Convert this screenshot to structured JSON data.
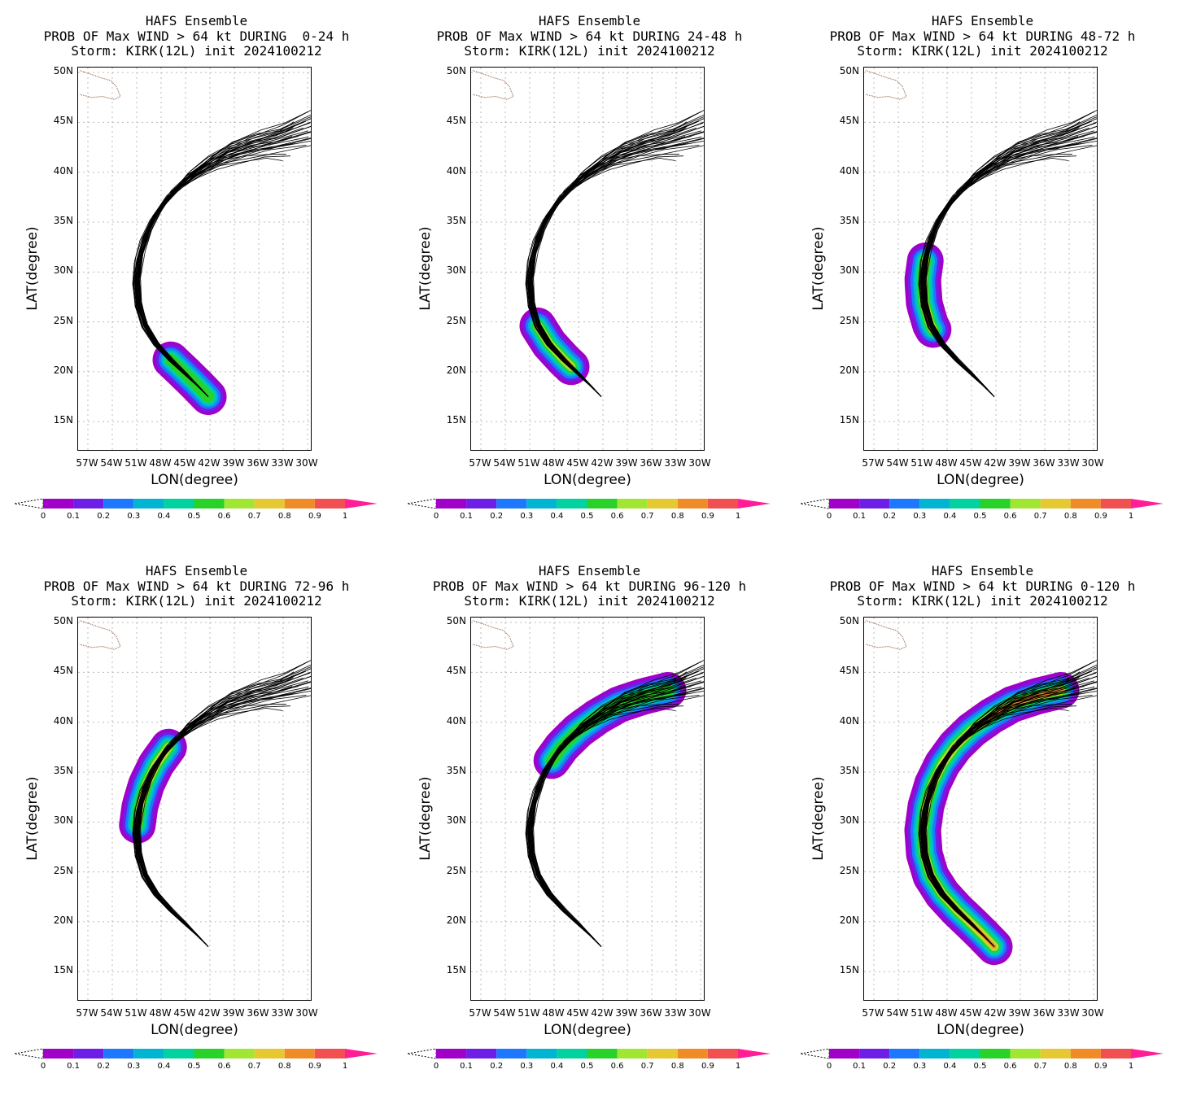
{
  "common": {
    "title_line1": "HAFS Ensemble",
    "title_line3": "Storm: KIRK(12L) init 2024100212",
    "xaxis_title": "LON(degree)",
    "yaxis_title": "LAT(degree)",
    "lat_labels": [
      "50N",
      "45N",
      "40N",
      "35N",
      "30N",
      "25N",
      "20N",
      "15N"
    ],
    "lon_labels": [
      "57W",
      "54W",
      "51W",
      "48W",
      "45W",
      "42W",
      "39W",
      "36W",
      "33W",
      "30W"
    ],
    "colorbar_labels": [
      "0",
      "0.1",
      "0.2",
      "0.3",
      "0.4",
      "0.5",
      "0.6",
      "0.7",
      "0.8",
      "0.9",
      "1"
    ],
    "colorbar_colors": [
      "#a000c8",
      "#6e1ee6",
      "#1e78ff",
      "#00b4d2",
      "#00d2a0",
      "#28d228",
      "#a0e632",
      "#e6c832",
      "#f08c28",
      "#f05050",
      "#ff1e96"
    ]
  },
  "panels": [
    {
      "title_line2": "PROB OF Max WIND > 64 kt DURING  0-24 h",
      "window": "0-24"
    },
    {
      "title_line2": "PROB OF Max WIND > 64 kt DURING 24-48 h",
      "window": "24-48"
    },
    {
      "title_line2": "PROB OF Max WIND > 64 kt DURING 48-72 h",
      "window": "48-72"
    },
    {
      "title_line2": "PROB OF Max WIND > 64 kt DURING 72-96 h",
      "window": "72-96"
    },
    {
      "title_line2": "PROB OF Max WIND > 64 kt DURING 96-120 h",
      "window": "96-120"
    },
    {
      "title_line2": "PROB OF Max WIND > 64 kt DURING 0-120 h",
      "window": "0-120"
    }
  ]
}
